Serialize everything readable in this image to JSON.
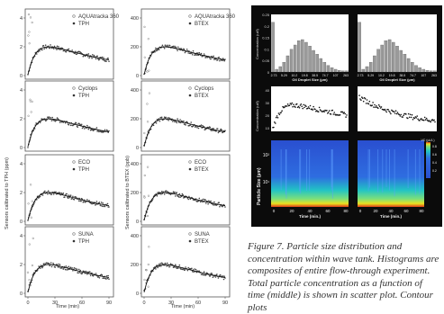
{
  "left_figure": {
    "ylabel_tph": "Sensors calibrated to TPH (ppm)",
    "ylabel_btex": "Sensors calibrated to BTEX (ppb)",
    "xlabel": "Time (min)",
    "tph_yticks": [
      "0",
      "2",
      "4"
    ],
    "btex_yticks": [
      "0",
      "200",
      "400"
    ],
    "xticks": [
      "0",
      "30",
      "60",
      "90"
    ],
    "rows": [
      {
        "sensor": "AQUAtracka 360",
        "ref_tph": "TPH",
        "ref_btex": "BTEX"
      },
      {
        "sensor": "Cyclops",
        "ref_tph": "TPH",
        "ref_btex": "BTEX"
      },
      {
        "sensor": "ECO",
        "ref_tph": "TPH",
        "ref_btex": "BTEX"
      },
      {
        "sensor": "SUNA",
        "ref_tph": "TPH",
        "ref_btex": "BTEX"
      }
    ]
  },
  "right_figure": {
    "hist_ylabel": "Concentration (ul/l)",
    "hist_yticks": [
      "0.25",
      "0.2",
      "0.15",
      "0.1",
      "0.05",
      "0"
    ],
    "hist_xticks": [
      "2.73",
      "5.29",
      "10.2",
      "19.8",
      "38.5",
      "74.7",
      "107",
      "263"
    ],
    "hist_xlabel": "Oil Droplet Size (µm)",
    "scatter_ylabel": "Concentration (ul/l)",
    "scatter_yticks": [
      "40",
      "30",
      "20",
      "10"
    ],
    "contour_ylabel": "Particle Size (µm)",
    "contour_yticks": [
      "10²",
      "10¹"
    ],
    "contour_xticks": [
      "0",
      "20",
      "40",
      "60",
      "80"
    ],
    "contour_xlabel": "Time (min.)",
    "colorbar_ticks": [
      "0.8",
      "0.6",
      "0.4",
      "0.2"
    ],
    "colorbar_label": "VC (µL/L)",
    "accent_colors": {
      "background": "#0b0b0b",
      "hist_bar": "#9a9a9a",
      "contour_low": "#1a3fb0",
      "contour_mid": "#22c4c4",
      "contour_high": "#e8e020"
    }
  },
  "caption": "Figure 7. Particle size distribution and concentration within wave tank. Histograms are composites of entire flow-through experiment. Total particle concentration as a function of time (middle) is shown in scatter plot. Contour plots"
}
